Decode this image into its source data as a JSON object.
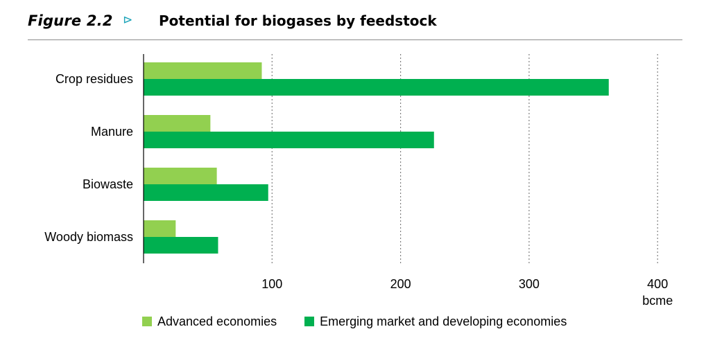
{
  "header": {
    "figure_label": "Figure 2.2",
    "arrow_glyph": "⊳",
    "title": "Potential for biogases by feedstock"
  },
  "colors": {
    "advanced": "#92d050",
    "emerging": "#00b050",
    "grid": "#7f7f7f",
    "axis": "#000000",
    "arrow": "#1aa3b8"
  },
  "chart_data": {
    "type": "bar",
    "orientation": "horizontal",
    "title": "Potential for biogases by feedstock",
    "categories": [
      "Crop residues",
      "Manure",
      "Biowaste",
      "Woody biomass"
    ],
    "series": [
      {
        "name": "Advanced economies",
        "values": [
          92,
          52,
          57,
          25
        ]
      },
      {
        "name": "Emerging market and developing economies",
        "values": [
          362,
          226,
          97,
          58
        ]
      }
    ],
    "x_ticks": [
      "100",
      "200",
      "300",
      "400"
    ],
    "xlabel": "bcme",
    "ylabel": "",
    "xlim": [
      0,
      400
    ],
    "grid": "vertical dotted",
    "legend_position": "bottom"
  }
}
